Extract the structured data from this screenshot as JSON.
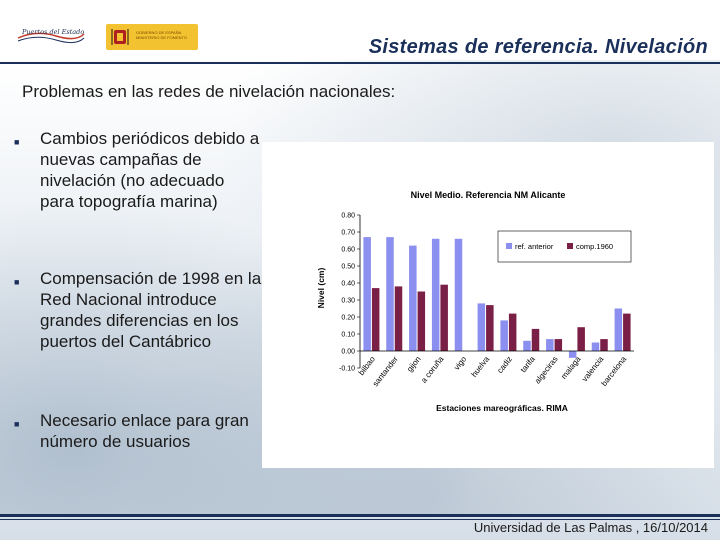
{
  "header": {
    "logo_left_text": "Puertos del Estado",
    "logo_right_text": "GOBIERNO DE ESPAÑA MINISTERIO DE FOMENTO",
    "title": "Sistemas de referencia. Nivelación"
  },
  "subtitle": "Problemas en las redes de nivelación nacionales:",
  "bullets": [
    "Cambios periódicos debido a nuevas campañas de nivelación (no adecuado para topografía marina)",
    "Compensación de 1998 en la Red Nacional introduce grandes diferencias en los puertos del Cantábrico",
    "Necesario enlace para gran número de usuarios"
  ],
  "footer": "Universidad de Las Palmas , 16/10/2014",
  "chart_data": {
    "type": "bar",
    "title": "Nivel Medio. Referencia NM Alicante",
    "xlabel": "Estaciones mareográficas. RIMA",
    "ylabel": "Nivel (cm)",
    "ylim": [
      -0.1,
      0.8
    ],
    "yticks": [
      "-0.10",
      "0.00",
      "0.10",
      "0.20",
      "0.30",
      "0.40",
      "0.50",
      "0.60",
      "0.70",
      "0.80"
    ],
    "grid": false,
    "legend_position": "top-right",
    "categories": [
      "bilbao",
      "santander",
      "gijon",
      "a coruña",
      "vigo",
      "huelva",
      "cadiz",
      "tarifa",
      "algeciras",
      "malaga",
      "valencia",
      "barcelona"
    ],
    "series": [
      {
        "name": "ref. anterior",
        "color": "#8b8ff0",
        "values": [
          0.67,
          0.67,
          0.62,
          0.66,
          0.66,
          0.28,
          0.18,
          0.06,
          0.07,
          -0.04,
          0.05,
          0.25
        ]
      },
      {
        "name": "comp.1960",
        "color": "#7a1f45",
        "values": [
          0.37,
          0.38,
          0.35,
          0.39,
          null,
          0.27,
          0.22,
          0.13,
          0.07,
          0.14,
          0.07,
          0.22
        ]
      }
    ]
  }
}
